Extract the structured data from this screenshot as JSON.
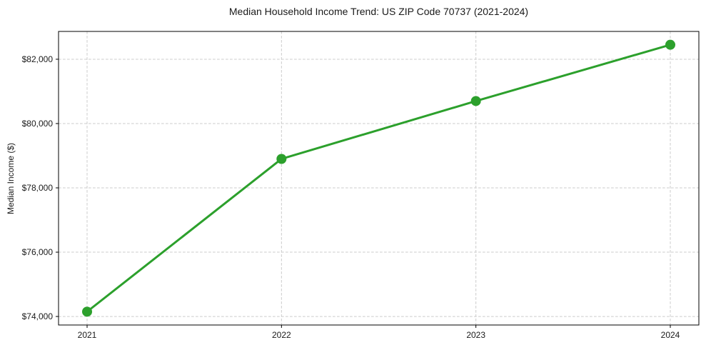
{
  "chart_data": {
    "type": "line",
    "title": "Median Household Income Trend: US ZIP Code 70737 (2021-2024)",
    "xlabel": "",
    "ylabel": "Median Income ($)",
    "categories": [
      "2021",
      "2022",
      "2023",
      "2024"
    ],
    "values": [
      74150,
      78900,
      80700,
      82450
    ],
    "y_ticks": {
      "values": [
        74000,
        76000,
        78000,
        80000,
        82000
      ],
      "labels": [
        "$74,000",
        "$76,000",
        "$78,000",
        "$80,000",
        "$82,000"
      ]
    },
    "ylim": [
      73735,
      82865
    ],
    "grid": true,
    "grid_style": "dashed",
    "legend_position": "none",
    "colors": {
      "line": "#2ca02c",
      "marker": "#2ca02c",
      "grid": "#cccccc",
      "spine": "#000000",
      "text": "#1a1a1a",
      "background": "#ffffff"
    },
    "marker": "circle"
  }
}
